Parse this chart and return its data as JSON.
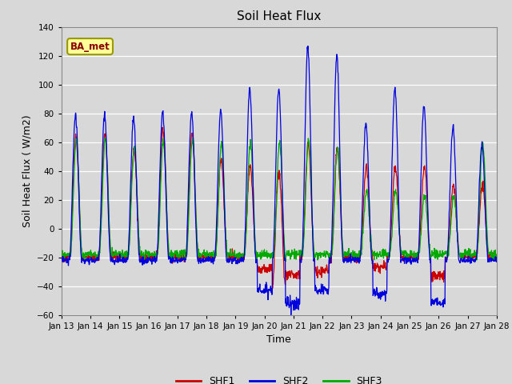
{
  "title": "Soil Heat Flux",
  "xlabel": "Time",
  "ylabel": "Soil Heat Flux ( W/m2)",
  "ylim": [
    -60,
    140
  ],
  "yticks": [
    -60,
    -40,
    -20,
    0,
    20,
    40,
    60,
    80,
    100,
    120,
    140
  ],
  "x_labels": [
    "Jan 13",
    "Jan 14",
    "Jan 15",
    "Jan 16",
    "Jan 17",
    "Jan 18",
    "Jan 19",
    "Jan 20",
    "Jan 21",
    "Jan 22",
    "Jan 23",
    "Jan 24",
    "Jan 25",
    "Jan 26",
    "Jan 27",
    "Jan 28"
  ],
  "bg_color": "#d8d8d8",
  "plot_bg_color": "#d8d8d8",
  "grid_color": "#ffffff",
  "shf1_color": "#cc0000",
  "shf2_color": "#0000dd",
  "shf3_color": "#00aa00",
  "legend_label1": "SHF1",
  "legend_label2": "SHF2",
  "legend_label3": "SHF3",
  "station_label": "BA_met",
  "station_box_color": "#ffff99",
  "station_text_color": "#880000"
}
